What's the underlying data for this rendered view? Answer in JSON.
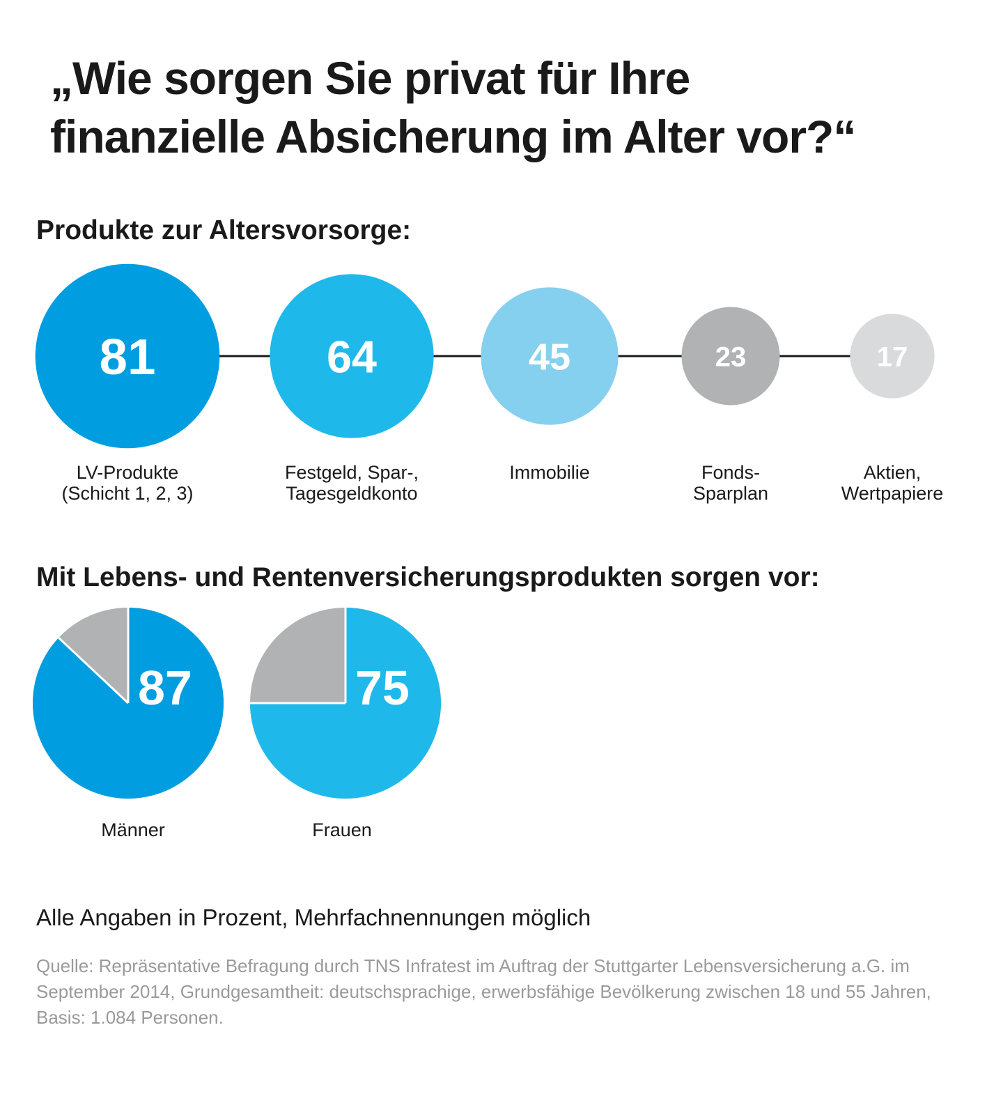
{
  "title_line1": "„Wie sorgen Sie privat für Ihre",
  "title_line2": "finanzielle Absicherung im Alter vor?“",
  "section1_title": "Produkte zur Altersvorsorge:",
  "section2_title": "Mit Lebens- und Rentenversicherungsprodukten sorgen vor:",
  "note": "Alle Angaben in Prozent, Mehrfachnennungen möglich",
  "source": "Quelle: Repräsentative Befragung durch TNS Infratest im Auftrag der Stuttgarter Lebensversicherung a.G. im September 2014, Grundgesamtheit: deutschsprachige, erwerbsfähige Bevölkerung zwischen 18 und 55 Jahren, Basis: 1.084 Personen.",
  "colors": {
    "dark_blue": "#009ee0",
    "blue": "#1eb9ea",
    "light_blue": "#85cfef",
    "grey": "#b1b2b4",
    "light_grey": "#d9dadb",
    "pie_rest": "#b1b2b4",
    "connector": "#1a1a1a"
  },
  "chart_data": [
    {
      "type": "bubble",
      "title": "Produkte zur Altersvorsorge:",
      "unit": "Prozent",
      "categories": [
        {
          "label_lines": [
            "LV-Produkte",
            "(Schicht 1, 2, 3)"
          ],
          "value": 81,
          "color": "#009ee0"
        },
        {
          "label_lines": [
            "Festgeld, Spar-,",
            "Tagesgeldkonto"
          ],
          "value": 64,
          "color": "#1eb9ea"
        },
        {
          "label_lines": [
            "Immobilie"
          ],
          "value": 45,
          "color": "#85cfef"
        },
        {
          "label_lines": [
            "Fonds-",
            "Sparplan"
          ],
          "value": 23,
          "color": "#b1b2b4"
        },
        {
          "label_lines": [
            "Aktien,",
            "Wertpapiere"
          ],
          "value": 17,
          "color": "#d9dadb"
        }
      ]
    },
    {
      "type": "pie",
      "title": "Mit Lebens- und Rentenversicherungsprodukten sorgen vor:",
      "unit": "Prozent",
      "pies": [
        {
          "label": "Männer",
          "value": 87,
          "color": "#009ee0"
        },
        {
          "label": "Frauen",
          "value": 75,
          "color": "#1eb9ea"
        }
      ]
    }
  ]
}
